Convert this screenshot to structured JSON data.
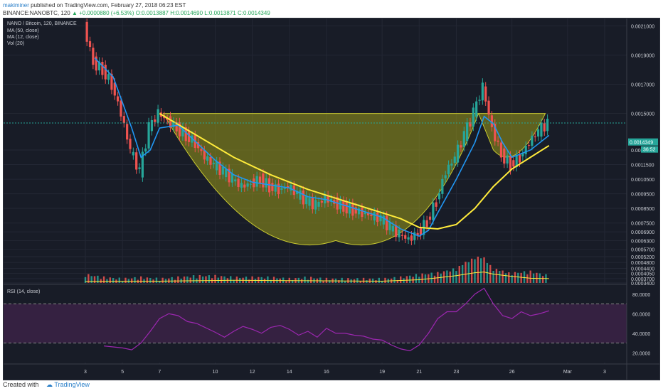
{
  "header": {
    "user": "makiminer",
    "published": "published on TradingView.com, February 27, 2018 06:23 EST",
    "symbol_line": "BINANCE:NANOBTC, 120",
    "change": "▲ +0.0000880 (+6.53%)",
    "ohlc": "O:0.0013887 H:0.0014690 L:0.0013871 C:0.0014349"
  },
  "legend": {
    "title": "NANO / Bitcoin, 120, BINANCE",
    "ma50": "MA (50, close)",
    "ma12": "MA (12, close)",
    "vol": "Vol (20)",
    "rsi": "RSI (14, close)"
  },
  "price_badges": {
    "last": "0.0014349",
    "countdown": "36:52"
  },
  "footer": {
    "created": "Created with",
    "brand": "TradingView"
  },
  "colors": {
    "bg": "#181c27",
    "up": "#26a69a",
    "down": "#ef5350",
    "ma50": "#ffeb3b",
    "ma12": "#2196f3",
    "rsi": "#9c27b0",
    "cup": "#9b9b1a"
  },
  "chart_data": {
    "type": "candlestick",
    "x_ticks": [
      "3",
      "5",
      "7",
      "10",
      "12",
      "14",
      "16",
      "19",
      "21",
      "23",
      "26",
      "Mar",
      "3"
    ],
    "price_axis_labels": [
      "0.0021000",
      "0.0019000",
      "0.0017000",
      "0.0015000",
      "0.0012500",
      "0.0011500",
      "0.0010500",
      "0.0009500",
      "0.0008500",
      "0.0007500",
      "0.0006900",
      "0.0006300",
      "0.0005700",
      "0.0005200",
      "0.0004800",
      "0.0004400",
      "0.0004050",
      "0.0003700",
      "0.0003400"
    ],
    "rsi_axis_labels": [
      "80.0000",
      "60.0000",
      "40.0000",
      "20.0000"
    ],
    "rsi_bands": [
      70,
      30
    ],
    "close_path": [
      [
        3,
        0.0021
      ],
      [
        3.5,
        0.00185
      ],
      [
        4,
        0.0018
      ],
      [
        4.5,
        0.0017
      ],
      [
        5,
        0.0015
      ],
      [
        5.5,
        0.00125
      ],
      [
        6,
        0.0011
      ],
      [
        6.5,
        0.0014
      ],
      [
        7,
        0.0015
      ],
      [
        7.5,
        0.00145
      ],
      [
        8,
        0.0014
      ],
      [
        8.5,
        0.00135
      ],
      [
        9,
        0.0013
      ],
      [
        9.5,
        0.0012
      ],
      [
        10,
        0.00115
      ],
      [
        10.5,
        0.0011
      ],
      [
        11,
        0.00105
      ],
      [
        11.5,
        0.001
      ],
      [
        12,
        0.00102
      ],
      [
        12.5,
        0.00105
      ],
      [
        13,
        0.001
      ],
      [
        13.5,
        0.00098
      ],
      [
        14,
        0.001
      ],
      [
        14.5,
        0.00095
      ],
      [
        15,
        0.0009
      ],
      [
        15.5,
        0.00087
      ],
      [
        16,
        0.00092
      ],
      [
        16.5,
        0.00089
      ],
      [
        17,
        0.00086
      ],
      [
        17.5,
        0.00084
      ],
      [
        18,
        0.00082
      ],
      [
        18.5,
        0.0008
      ],
      [
        19,
        0.00078
      ],
      [
        19.5,
        0.00072
      ],
      [
        20,
        0.00067
      ],
      [
        20.5,
        0.00064
      ],
      [
        21,
        0.00068
      ],
      [
        21.5,
        0.00076
      ],
      [
        22,
        0.0009
      ],
      [
        22.5,
        0.0011
      ],
      [
        23,
        0.0012
      ],
      [
        23.5,
        0.00135
      ],
      [
        24,
        0.0015
      ],
      [
        24.5,
        0.00168
      ],
      [
        25,
        0.0014
      ],
      [
        25.5,
        0.00122
      ],
      [
        26,
        0.00115
      ],
      [
        26.5,
        0.0012
      ],
      [
        27,
        0.0013
      ],
      [
        27.5,
        0.00138
      ],
      [
        28,
        0.00143
      ]
    ],
    "ma50_path": [
      [
        7,
        0.0015
      ],
      [
        9,
        0.00135
      ],
      [
        11,
        0.0012
      ],
      [
        13,
        0.00108
      ],
      [
        15,
        0.00098
      ],
      [
        17,
        0.0009
      ],
      [
        19,
        0.00082
      ],
      [
        20,
        0.00078
      ],
      [
        21,
        0.00072
      ],
      [
        22,
        0.00071
      ],
      [
        23,
        0.00074
      ],
      [
        24,
        0.00085
      ],
      [
        25,
        0.001
      ],
      [
        26,
        0.00112
      ],
      [
        27,
        0.0012
      ],
      [
        28,
        0.00128
      ]
    ],
    "ma12_path": [
      [
        3.5,
        0.00188
      ],
      [
        4.5,
        0.00175
      ],
      [
        5.5,
        0.0014
      ],
      [
        6,
        0.0012
      ],
      [
        6.5,
        0.00125
      ],
      [
        7,
        0.0014
      ],
      [
        8,
        0.00142
      ],
      [
        9,
        0.0013
      ],
      [
        10,
        0.00118
      ],
      [
        11,
        0.00108
      ],
      [
        12,
        0.00103
      ],
      [
        13,
        0.00101
      ],
      [
        14,
        0.00099
      ],
      [
        15,
        0.00093
      ],
      [
        16,
        0.00091
      ],
      [
        17,
        0.00087
      ],
      [
        18,
        0.00083
      ],
      [
        19,
        0.00079
      ],
      [
        20,
        0.00071
      ],
      [
        21,
        0.00066
      ],
      [
        21.5,
        0.0007
      ],
      [
        22,
        0.00082
      ],
      [
        23,
        0.00105
      ],
      [
        24,
        0.0013
      ],
      [
        24.5,
        0.00148
      ],
      [
        25,
        0.00143
      ],
      [
        25.5,
        0.0013
      ],
      [
        26,
        0.0012
      ],
      [
        27,
        0.00125
      ],
      [
        28,
        0.00135
      ]
    ],
    "rsi_path": [
      [
        4,
        27
      ],
      [
        5,
        25
      ],
      [
        5.5,
        23
      ],
      [
        6,
        30
      ],
      [
        6.5,
        42
      ],
      [
        7,
        55
      ],
      [
        7.5,
        60
      ],
      [
        8,
        58
      ],
      [
        8.5,
        52
      ],
      [
        9,
        50
      ],
      [
        10,
        41
      ],
      [
        10.5,
        36
      ],
      [
        11,
        42
      ],
      [
        11.5,
        47
      ],
      [
        12,
        44
      ],
      [
        12.5,
        40
      ],
      [
        13,
        46
      ],
      [
        13.5,
        48
      ],
      [
        14,
        44
      ],
      [
        14.5,
        38
      ],
      [
        15,
        42
      ],
      [
        15.5,
        36
      ],
      [
        16,
        45
      ],
      [
        16.5,
        40
      ],
      [
        17,
        40
      ],
      [
        17.5,
        38
      ],
      [
        18,
        37
      ],
      [
        18.5,
        34
      ],
      [
        19,
        33
      ],
      [
        19.5,
        28
      ],
      [
        20,
        24
      ],
      [
        20.5,
        22
      ],
      [
        21,
        28
      ],
      [
        21.5,
        40
      ],
      [
        22,
        55
      ],
      [
        22.5,
        62
      ],
      [
        23,
        62
      ],
      [
        23.5,
        70
      ],
      [
        24,
        80
      ],
      [
        24.5,
        86
      ],
      [
        25,
        70
      ],
      [
        25.5,
        58
      ],
      [
        26,
        55
      ],
      [
        26.5,
        62
      ],
      [
        27,
        58
      ],
      [
        27.5,
        60
      ],
      [
        28,
        63
      ]
    ],
    "volume": [
      [
        3,
        0.00038
      ],
      [
        4,
        0.00036
      ],
      [
        5,
        0.00035
      ],
      [
        6,
        0.00036
      ],
      [
        7,
        0.00035
      ],
      [
        8,
        0.00036
      ],
      [
        9,
        0.00037
      ],
      [
        10,
        0.00037
      ],
      [
        11,
        0.00036
      ],
      [
        12,
        0.00036
      ],
      [
        13,
        0.00036
      ],
      [
        14,
        0.00035
      ],
      [
        15,
        0.00036
      ],
      [
        16,
        0.00035
      ],
      [
        17,
        0.00035
      ],
      [
        18,
        0.00035
      ],
      [
        19,
        0.00035
      ],
      [
        20,
        0.00036
      ],
      [
        21,
        0.00038
      ],
      [
        22,
        0.00039
      ],
      [
        23,
        0.00042
      ],
      [
        23.5,
        0.00046
      ],
      [
        24,
        0.0005
      ],
      [
        24.5,
        0.00049
      ],
      [
        25,
        0.00042
      ],
      [
        25.5,
        0.0004
      ],
      [
        26,
        0.00039
      ],
      [
        27,
        0.0004
      ],
      [
        28,
        0.00037
      ]
    ],
    "volume_ma_path": [
      [
        3,
        0.00035
      ],
      [
        7,
        0.000352
      ],
      [
        11,
        0.000358
      ],
      [
        15,
        0.000355
      ],
      [
        19,
        0.000352
      ],
      [
        21,
        0.000362
      ],
      [
        22,
        0.000375
      ],
      [
        23,
        0.00039
      ],
      [
        24,
        0.00041
      ],
      [
        24.5,
        0.000415
      ],
      [
        25,
        0.0004
      ],
      [
        26,
        0.000385
      ],
      [
        27,
        0.000372
      ],
      [
        28,
        0.00037
      ]
    ]
  }
}
